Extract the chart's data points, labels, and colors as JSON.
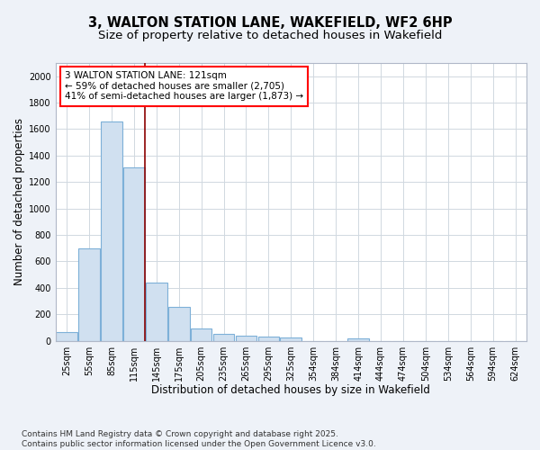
{
  "title": "3, WALTON STATION LANE, WAKEFIELD, WF2 6HP",
  "subtitle": "Size of property relative to detached houses in Wakefield",
  "xlabel": "Distribution of detached houses by size in Wakefield",
  "ylabel": "Number of detached properties",
  "categories": [
    "25sqm",
    "55sqm",
    "85sqm",
    "115sqm",
    "145sqm",
    "175sqm",
    "205sqm",
    "235sqm",
    "265sqm",
    "295sqm",
    "325sqm",
    "354sqm",
    "384sqm",
    "414sqm",
    "444sqm",
    "474sqm",
    "504sqm",
    "534sqm",
    "564sqm",
    "594sqm",
    "624sqm"
  ],
  "values": [
    65,
    700,
    1660,
    1310,
    440,
    255,
    90,
    55,
    40,
    28,
    25,
    0,
    0,
    15,
    0,
    0,
    0,
    0,
    0,
    0,
    0
  ],
  "bar_color": "#d0e0f0",
  "bar_edge_color": "#7db0d8",
  "bar_edge_width": 0.8,
  "grid_color": "#d0d8e0",
  "vline_x_idx": 3,
  "vline_color": "#8b0000",
  "vline_linewidth": 1.2,
  "annotation_line1": "3 WALTON STATION LANE: 121sqm",
  "annotation_line2": "← 59% of detached houses are smaller (2,705)",
  "annotation_line3": "41% of semi-detached houses are larger (1,873) →",
  "ylim": [
    0,
    2100
  ],
  "yticks": [
    0,
    200,
    400,
    600,
    800,
    1000,
    1200,
    1400,
    1600,
    1800,
    2000
  ],
  "footnote": "Contains HM Land Registry data © Crown copyright and database right 2025.\nContains public sector information licensed under the Open Government Licence v3.0.",
  "bg_color": "#eef2f8",
  "plot_bg_color": "#ffffff",
  "title_fontsize": 10.5,
  "subtitle_fontsize": 9.5,
  "tick_fontsize": 7,
  "label_fontsize": 8.5,
  "footnote_fontsize": 6.5,
  "annot_fontsize": 7.5
}
